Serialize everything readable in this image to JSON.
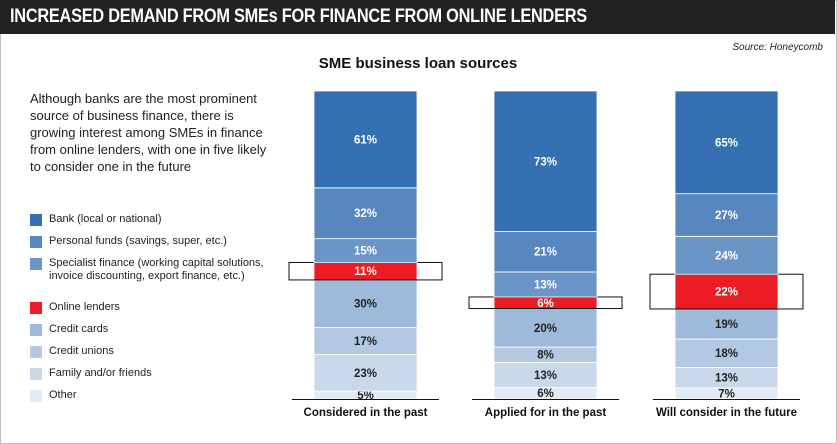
{
  "header": {
    "banner": "INCREASED DEMAND FROM SMEs FOR FINANCE FROM ONLINE LENDERS",
    "source": "Source: Honeycomb"
  },
  "description": "Although banks are the most prominent source of business finance, there is growing interest among SMEs in finance from online lenders, with one in five likely to consider one in the future",
  "chart_data": {
    "type": "bar",
    "stacked": true,
    "title": "SME business loan sources",
    "categories": [
      "Considered in the past",
      "Applied for in the past",
      "Will consider in the future"
    ],
    "unit": "%",
    "highlight_series": "Online lenders",
    "series": [
      {
        "name": "Other",
        "color": "#e2ebf4",
        "values": [
          5,
          6,
          7
        ]
      },
      {
        "name": "Family and/or friends",
        "color": "#c9d9ea",
        "values": [
          23,
          13,
          13
        ]
      },
      {
        "name": "Credit unions",
        "color": "#b3c9e1",
        "values": [
          17,
          8,
          18
        ]
      },
      {
        "name": "Credit cards",
        "color": "#9dbadb",
        "values": [
          30,
          20,
          19
        ]
      },
      {
        "name": "Online lenders",
        "color": "#ed1c24",
        "values": [
          11,
          6,
          22
        ]
      },
      {
        "name": "Specialist finance (working capital solutions, invoice discounting, export finance, etc.)",
        "color": "#6a95c6",
        "values": [
          15,
          13,
          24
        ]
      },
      {
        "name": "Personal funds (savings, super, etc.)",
        "color": "#5887bf",
        "values": [
          32,
          21,
          27
        ]
      },
      {
        "name": "Bank (local or national)",
        "color": "#3570b2",
        "values": [
          61,
          73,
          65
        ]
      }
    ],
    "legend_order": [
      "Bank (local or national)",
      "Personal funds (savings, super, etc.)",
      "Specialist finance (working capital solutions, invoice discounting, export finance, etc.)",
      "Online lenders",
      "Credit cards",
      "Credit unions",
      "Family and/or friends",
      "Other"
    ],
    "legend_placement": "left",
    "grid": false
  }
}
